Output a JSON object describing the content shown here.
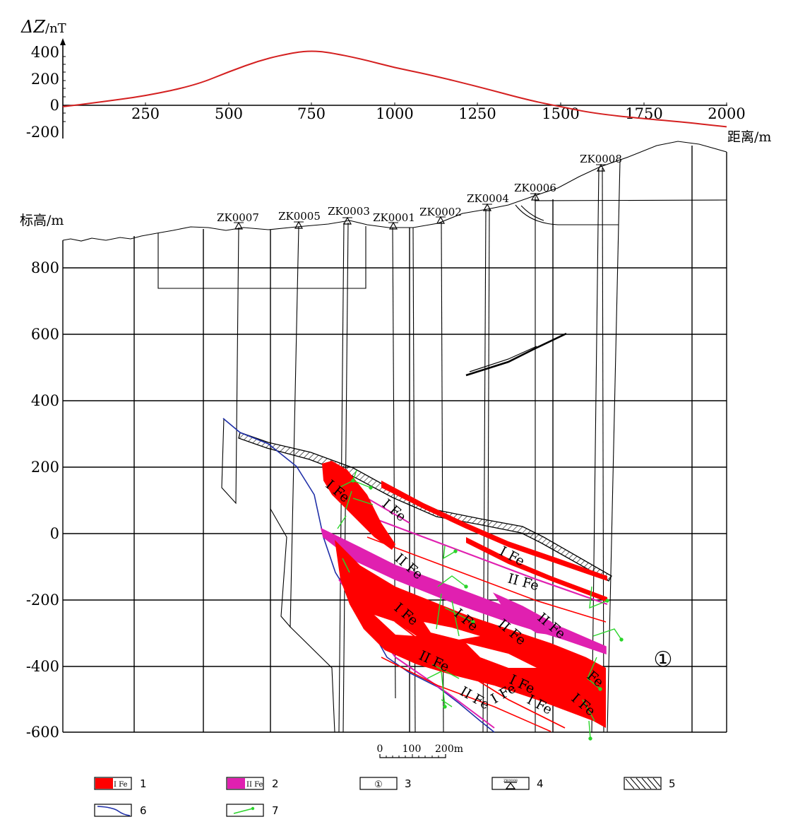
{
  "profile": {
    "y_label_symbol": "ΔZ",
    "y_label_unit": "/nT",
    "x_label": "距离/m",
    "y_ticks": [
      "400",
      "200",
      "0",
      "-200"
    ],
    "x_ticks": [
      "250",
      "500",
      "750",
      "1000",
      "1250",
      "1500",
      "1750",
      "2000"
    ]
  },
  "section": {
    "y_label": "标高/m",
    "elevation_ticks": [
      "800",
      "600",
      "400",
      "200",
      "0",
      "-200",
      "-400",
      "-600"
    ],
    "boreholes": [
      "ZK0007",
      "ZK0005",
      "ZK0003",
      "ZK0001",
      "ZK0002",
      "ZK0004",
      "ZK0006",
      "ZK0008"
    ],
    "ore_labels": [
      "I Fe",
      "I Fe",
      "II Fe",
      "I Fe",
      "II Fe",
      "I Fe",
      "I Fe",
      "II Fe",
      "II Fe",
      "I Fe",
      "II Fe",
      "I Fe",
      "I Fe",
      "II Fe",
      "I Fe",
      "I Fe",
      "Fe"
    ],
    "ore_label_1_color": "#ff0000",
    "ore_label_2_color": "#e020b0",
    "zone_marker": "①"
  },
  "scale_bar": {
    "labels": [
      "0",
      "100",
      "200m"
    ]
  },
  "legend": [
    {
      "swatch_text": "I Fe",
      "number": "1",
      "color": "#ff0000"
    },
    {
      "swatch_text": "II Fe",
      "number": "2",
      "color": "#e020b0"
    },
    {
      "swatch_text": "①",
      "number": "3"
    },
    {
      "swatch_text": "ZK0008",
      "number": "4"
    },
    {
      "swatch_text": "",
      "number": "5"
    },
    {
      "swatch_text": "",
      "number": "6",
      "color": "#1f2fa8"
    },
    {
      "swatch_text": "",
      "number": "7",
      "color": "#2bd42b"
    }
  ],
  "chart_data": {
    "type": "line",
    "xlabel": "距离/m",
    "ylabel": "ΔZ/nT",
    "xlim": [
      0,
      2000
    ],
    "ylim": [
      -200,
      400
    ],
    "series": [
      {
        "x": [
          0,
          100,
          250,
          400,
          500,
          600,
          700,
          750,
          800,
          900,
          1000,
          1100,
          1250,
          1400,
          1500,
          1600,
          1750,
          1850,
          2000
        ],
        "values": [
          -10,
          20,
          70,
          150,
          250,
          340,
          395,
          405,
          395,
          345,
          280,
          230,
          140,
          40,
          -10,
          -60,
          -100,
          -120,
          -160
        ]
      }
    ],
    "line_color": "#d42020"
  }
}
